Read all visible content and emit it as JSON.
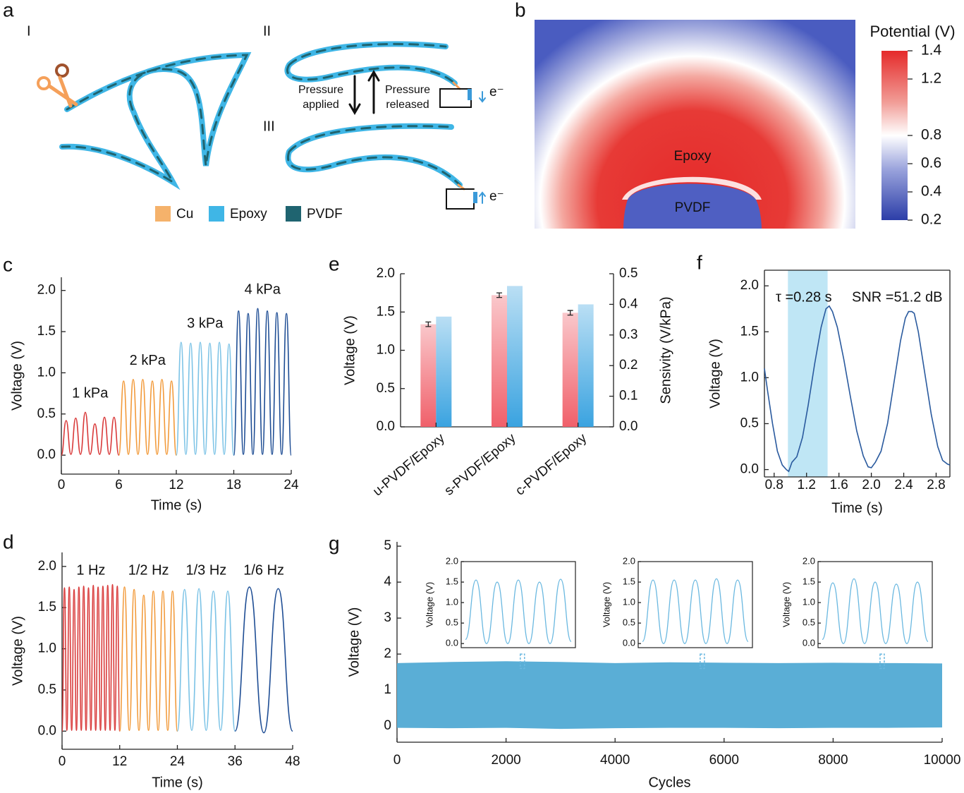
{
  "panel_a": {
    "label": "a",
    "stages": [
      "I",
      "II",
      "III"
    ],
    "applied": [
      "Pressure",
      "applied"
    ],
    "released": [
      "Pressure",
      "released"
    ],
    "electron": "e⁻",
    "legend": [
      {
        "name": "Cu",
        "color": "#f5b26b"
      },
      {
        "name": "Epoxy",
        "color": "#3fb6e6"
      },
      {
        "name": "PVDF",
        "color": "#1f6470"
      }
    ]
  },
  "panel_b": {
    "label": "b",
    "colorbar_title": "Potential (V)",
    "clim": [
      0.2,
      1.4
    ],
    "ticks": [
      1.4,
      1.2,
      0.8,
      0.6,
      0.4,
      0.2
    ],
    "regions": [
      "Epoxy",
      "PVDF"
    ]
  },
  "chart_data": [
    {
      "type": "line",
      "label": "c",
      "x_label": "Time (s)",
      "y_label": "Voltage (V)",
      "xlim": [
        0,
        24
      ],
      "xticks": [
        0,
        6,
        12,
        18,
        24
      ],
      "ylim": [
        -0.23,
        2.16
      ],
      "yticks": [
        {
          "value": 0,
          "label": "0.0"
        },
        0.5,
        {
          "value": 1,
          "label": "1.0"
        },
        1.5,
        {
          "value": 2,
          "label": "2.0"
        }
      ],
      "series": [
        {
          "name": "1 kPa",
          "color": "#d93a3a",
          "x": [
            0,
            0.5,
            1,
            1.5,
            2,
            2.5,
            3,
            3.5,
            4,
            4.5,
            5,
            5.5,
            6
          ],
          "values": [
            0,
            0.42,
            0.01,
            0.45,
            0.01,
            0.52,
            0.01,
            0.38,
            0.01,
            0.46,
            0.01,
            0.46,
            0
          ]
        },
        {
          "name": "2 kPa",
          "color": "#f29a3a",
          "x": [
            6,
            6.5,
            7,
            7.5,
            8,
            8.5,
            9,
            9.5,
            10,
            10.5,
            11,
            11.5,
            12
          ],
          "values": [
            0,
            0.9,
            0.01,
            0.92,
            0.01,
            0.92,
            0.01,
            0.9,
            0.01,
            0.92,
            0.01,
            0.9,
            0
          ]
        },
        {
          "name": "3 kPa",
          "color": "#7cc3e6",
          "x": [
            12,
            12.5,
            13,
            13.5,
            14,
            14.5,
            15,
            15.5,
            16,
            16.5,
            17,
            17.5,
            18
          ],
          "values": [
            0,
            1.37,
            0.01,
            1.36,
            0.01,
            1.37,
            0.01,
            1.36,
            0.01,
            1.37,
            0.01,
            1.35,
            0
          ]
        },
        {
          "name": "4 kPa",
          "color": "#1e4d94",
          "x": [
            18,
            18.5,
            19,
            19.5,
            20,
            20.5,
            21,
            21.5,
            22,
            22.5,
            23,
            23.5,
            24
          ],
          "values": [
            0,
            1.75,
            0.01,
            1.72,
            0.01,
            1.78,
            0.01,
            1.75,
            0.01,
            1.73,
            0.01,
            1.72,
            0
          ]
        }
      ]
    },
    {
      "type": "line",
      "label": "d",
      "x_label": "Time (s)",
      "y_label": "Voltage (V)",
      "xlim": [
        0,
        48
      ],
      "xticks": [
        0,
        12,
        24,
        36,
        48
      ],
      "ylim": [
        -0.22,
        2.17
      ],
      "yticks": [
        {
          "value": 0,
          "label": "0.0"
        },
        0.5,
        {
          "value": 1,
          "label": "1.0"
        },
        1.5,
        {
          "value": 2,
          "label": "2.0"
        }
      ],
      "series": [
        {
          "name": "1 Hz",
          "color": "#d93a3a",
          "x": [
            0,
            0.5,
            1,
            1.5,
            2,
            2.5,
            3,
            3.5,
            4,
            4.5,
            5,
            5.5,
            6,
            6.5,
            7,
            7.5,
            8,
            8.5,
            9,
            9.5,
            10,
            10.5,
            11,
            11.5,
            12
          ],
          "values": [
            0,
            1.74,
            0.01,
            1.75,
            0.01,
            1.72,
            0.01,
            1.75,
            0.01,
            1.76,
            0.01,
            1.74,
            0.01,
            1.77,
            0.01,
            1.75,
            0.01,
            1.76,
            0.01,
            1.77,
            0.01,
            1.78,
            0.01,
            1.76,
            0
          ]
        },
        {
          "name": "1/2 Hz",
          "color": "#f29a3a",
          "x": [
            12,
            13,
            14,
            15,
            16,
            17,
            18,
            19,
            20,
            21,
            22,
            23,
            24
          ],
          "values": [
            0,
            1.75,
            0.01,
            1.72,
            0.01,
            1.65,
            0.01,
            1.7,
            0.01,
            1.7,
            0.01,
            1.7,
            0
          ]
        },
        {
          "name": "1/3 Hz",
          "color": "#7cc3e6",
          "x": [
            24,
            25.5,
            27,
            28.5,
            30,
            31.5,
            33,
            34.5,
            36
          ],
          "values": [
            0,
            1.72,
            0.01,
            1.73,
            0.01,
            1.7,
            0.01,
            1.7,
            0
          ]
        },
        {
          "name": "1/6 Hz",
          "color": "#1e4d94",
          "x": [
            36,
            39,
            42,
            45,
            48
          ],
          "values": [
            0,
            1.75,
            -0.02,
            1.73,
            0
          ]
        }
      ]
    },
    {
      "type": "bar",
      "label": "e",
      "categories": [
        "u-PVDF/Epoxy",
        "s-PVDF/Epoxy",
        "c-PVDF/Epoxy"
      ],
      "y_label": "Voltage (V)",
      "y2_label": "Sensivity (V/kPa)",
      "ylim": [
        0,
        2
      ],
      "yticks": [
        {
          "value": 0,
          "label": "0.0"
        },
        0.5,
        {
          "value": 1,
          "label": "1.0"
        },
        1.5,
        {
          "value": 2,
          "label": "2.0"
        }
      ],
      "y2lim": [
        0,
        0.5
      ],
      "y2ticks": [
        {
          "value": 0,
          "label": "0.0"
        },
        0.1,
        0.2,
        0.3,
        0.4,
        0.5
      ],
      "series": [
        {
          "color": "#f0606a",
          "values": [
            1.34,
            1.72,
            1.49
          ],
          "errors": [
            0.03,
            0.03,
            0.03
          ]
        },
        {
          "color": "#3aa3e0",
          "axis": "y2",
          "values": [
            0.36,
            0.46,
            0.4
          ]
        }
      ]
    },
    {
      "type": "line",
      "label": "f",
      "x_label": "Time (s)",
      "y_label": "Voltage (V)",
      "xlim": [
        0.68,
        2.97
      ],
      "xticks": [
        0.8,
        1.2,
        1.6,
        {
          "value": 2,
          "label": "2.0"
        },
        2.4,
        2.8
      ],
      "ylim": [
        -0.08,
        2.17
      ],
      "yticks": [
        {
          "value": 0,
          "label": "0.0"
        },
        0.5,
        {
          "value": 1,
          "label": "1.0"
        },
        1.5,
        {
          "value": 2,
          "label": "2.0"
        }
      ],
      "highlight": [
        0.97,
        1.46
      ],
      "highlight_color": "#bfe6f5",
      "annotations": [
        "τ =0.28 s",
        "SNR =51.2 dB"
      ],
      "series": [
        {
          "color": "#2a5a9e",
          "x": [
            0.68,
            0.72,
            0.78,
            0.84,
            0.9,
            0.95,
            0.98,
            1.02,
            1.08,
            1.15,
            1.22,
            1.3,
            1.38,
            1.44,
            1.48,
            1.52,
            1.58,
            1.66,
            1.74,
            1.82,
            1.9,
            1.96,
            2.0,
            2.05,
            2.12,
            2.2,
            2.28,
            2.36,
            2.42,
            2.46,
            2.5,
            2.53,
            2.58,
            2.66,
            2.74,
            2.82,
            2.88,
            2.94,
            2.97
          ],
          "values": [
            1.1,
            0.85,
            0.5,
            0.2,
            0.05,
            0.0,
            -0.02,
            0.08,
            0.14,
            0.35,
            0.7,
            1.15,
            1.55,
            1.75,
            1.78,
            1.72,
            1.55,
            1.2,
            0.8,
            0.42,
            0.15,
            0.03,
            0.02,
            0.08,
            0.2,
            0.5,
            0.95,
            1.4,
            1.65,
            1.72,
            1.72,
            1.7,
            1.5,
            1.05,
            0.6,
            0.25,
            0.1,
            0.06,
            0.05
          ]
        }
      ]
    },
    {
      "type": "area",
      "label": "g",
      "x_label": "Cycles",
      "y_label": "Voltage (V)",
      "xlim": [
        0,
        10000
      ],
      "xticks": [
        0,
        2000,
        4000,
        6000,
        8000,
        10000
      ],
      "ylim": [
        -0.45,
        5.12
      ],
      "yticks": [
        0,
        1,
        2,
        3,
        4,
        5
      ],
      "color": "#5aaed6",
      "x": [
        0,
        1000,
        2000,
        3000,
        4000,
        5000,
        6000,
        7000,
        8000,
        9000,
        10000
      ],
      "upper": [
        1.75,
        1.78,
        1.8,
        1.78,
        1.75,
        1.77,
        1.76,
        1.75,
        1.76,
        1.75,
        1.74
      ],
      "lower": [
        -0.05,
        -0.06,
        -0.05,
        -0.08,
        -0.06,
        -0.05,
        -0.05,
        -0.06,
        -0.05,
        -0.05,
        -0.04
      ],
      "insets": [
        {
          "cycle": 2300,
          "y_label": "Voltage (V)",
          "ylim": [
            -0.1,
            2.0
          ],
          "yticks": [
            {
              "value": 0,
              "label": "0.0"
            },
            0.5,
            {
              "value": 1,
              "label": "1.0"
            },
            1.5,
            {
              "value": 2,
              "label": "2.0"
            }
          ],
          "color": "#6ab8e0",
          "values": [
            0.1,
            1.55,
            0.0,
            1.5,
            0.0,
            1.55,
            0.0,
            1.5,
            0.0,
            1.57,
            0.05
          ]
        },
        {
          "cycle": 5600,
          "y_label": "Voltage (V)",
          "ylim": [
            -0.1,
            2.0
          ],
          "yticks": [
            {
              "value": 0,
              "label": "0.0"
            },
            0.5,
            {
              "value": 1,
              "label": "1.0"
            },
            1.5,
            {
              "value": 2,
              "label": "2.0"
            }
          ],
          "color": "#6ab8e0",
          "values": [
            0.05,
            1.55,
            0.0,
            1.55,
            0.0,
            1.55,
            0.0,
            1.58,
            0.0,
            1.55,
            0.05
          ]
        },
        {
          "cycle": 8900,
          "y_label": "Voltage (V)",
          "ylim": [
            -0.1,
            2.0
          ],
          "yticks": [
            {
              "value": 0,
              "label": "0.0"
            },
            0.5,
            {
              "value": 1,
              "label": "1.0"
            },
            1.5,
            {
              "value": 2,
              "label": "2.0"
            }
          ],
          "color": "#6ab8e0",
          "values": [
            0.1,
            1.48,
            0.0,
            1.58,
            0.0,
            1.5,
            0.0,
            1.45,
            0.0,
            1.5,
            0.05
          ]
        }
      ]
    }
  ]
}
